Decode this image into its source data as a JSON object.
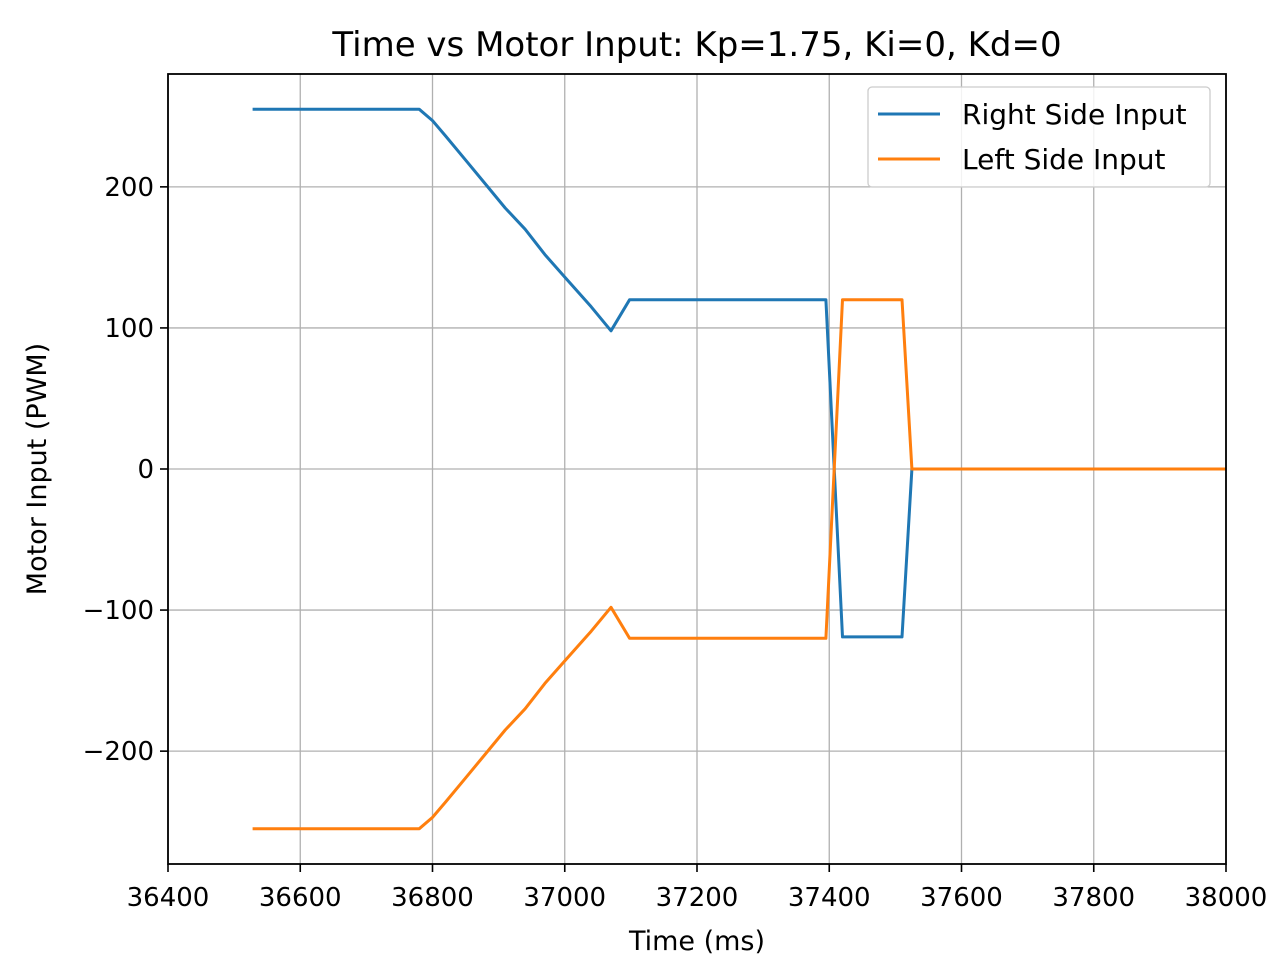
{
  "chart_data": {
    "type": "line",
    "title": "Time vs Motor Input: Kp=1.75, Ki=0, Kd=0",
    "xlabel": "Time (ms)",
    "ylabel": "Motor Input (PWM)",
    "xlim": [
      36400,
      38000
    ],
    "ylim": [
      -280,
      280
    ],
    "xticks": [
      36400,
      36600,
      36800,
      37000,
      37200,
      37400,
      37600,
      37800,
      38000
    ],
    "xtick_labels": [
      "36400",
      "36600",
      "36800",
      "37000",
      "37200",
      "37400",
      "37600",
      "37800",
      "38000"
    ],
    "yticks": [
      -200,
      -100,
      0,
      100,
      200
    ],
    "ytick_labels": [
      "−200",
      "−100",
      "0",
      "100",
      "200"
    ],
    "grid": true,
    "legend_position": "top-right",
    "series": [
      {
        "name": "Right Side Input",
        "color": "#1f77b4",
        "x": [
          36528,
          36780,
          36800,
          36820,
          36850,
          36880,
          36910,
          36940,
          36970,
          37000,
          37040,
          37070,
          37098,
          37395,
          37420,
          37510,
          37525
        ],
        "y": [
          255,
          255,
          247,
          236,
          219,
          202,
          185,
          170,
          152,
          136,
          115,
          98,
          120,
          120,
          -119,
          -119,
          0
        ]
      },
      {
        "name": "Left Side Input",
        "color": "#ff7f0e",
        "x": [
          36528,
          36780,
          36800,
          36820,
          36850,
          36880,
          36910,
          36940,
          36970,
          37000,
          37040,
          37070,
          37098,
          37395,
          37420,
          37510,
          37525,
          38000
        ],
        "y": [
          -255,
          -255,
          -247,
          -236,
          -219,
          -202,
          -185,
          -170,
          -152,
          -136,
          -115,
          -98,
          -120,
          -120,
          120,
          120,
          0,
          0
        ]
      }
    ]
  }
}
